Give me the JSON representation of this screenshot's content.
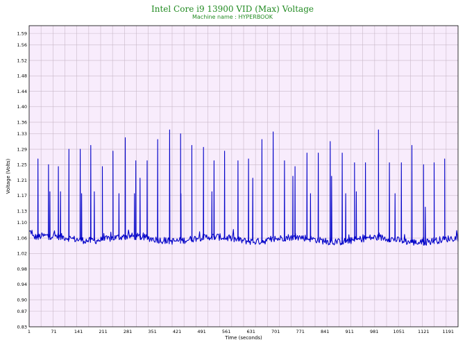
{
  "chart_data": {
    "type": "line",
    "title": "Intel Core i9 13900 VID (Max) Voltage",
    "subtitle": "Machine name : HYPERBOOK",
    "xlabel": "Time (seconds)",
    "ylabel": "Voltage (Volts)",
    "xlim": [
      1,
      1219
    ],
    "ylim": [
      0.83,
      1.61
    ],
    "x_ticks": [
      "1",
      "71",
      "141",
      "211",
      "281",
      "351",
      "421",
      "491",
      "561",
      "631",
      "701",
      "771",
      "841",
      "911",
      "981",
      "1051",
      "1121",
      "1191"
    ],
    "x_tick_values": [
      1,
      71,
      141,
      211,
      281,
      351,
      421,
      491,
      561,
      631,
      701,
      771,
      841,
      911,
      981,
      1051,
      1121,
      1191
    ],
    "y_ticks": [
      "0.83",
      "0.87",
      "0.90",
      "0.94",
      "0.98",
      "1.02",
      "1.06",
      "1.10",
      "1.13",
      "1.17",
      "1.21",
      "1.25",
      "1.29",
      "1.33",
      "1.36",
      "1.40",
      "1.44",
      "1.48",
      "1.52",
      "1.56",
      "1.59"
    ],
    "y_tick_values": [
      0.83,
      0.87,
      0.9,
      0.94,
      0.98,
      1.02,
      1.06,
      1.1,
      1.13,
      1.17,
      1.21,
      1.25,
      1.29,
      1.33,
      1.36,
      1.4,
      1.44,
      1.48,
      1.52,
      1.56,
      1.59
    ],
    "grid": true,
    "series_color": "#0000c8",
    "plot_background": "#f8ecfc",
    "grid_color": "#c8b8c8",
    "baseline": 1.06,
    "spikes": {
      "x": [
        26,
        56,
        84,
        114,
        146,
        176,
        209,
        239,
        274,
        304,
        336,
        366,
        400,
        431,
        463,
        496,
        526,
        556,
        594,
        624,
        662,
        694,
        726,
        756,
        790,
        822,
        856,
        890,
        925,
        956,
        993,
        1024,
        1058,
        1088,
        1121,
        1151,
        1181
      ],
      "y": [
        1.265,
        1.25,
        1.245,
        1.29,
        1.29,
        1.3,
        1.245,
        1.285,
        1.32,
        1.26,
        1.26,
        1.315,
        1.34,
        1.33,
        1.3,
        1.295,
        1.26,
        1.285,
        1.26,
        1.265,
        1.315,
        1.335,
        1.26,
        1.245,
        1.28,
        1.28,
        1.31,
        1.28,
        1.255,
        1.255,
        1.34,
        1.255,
        1.255,
        1.3,
        1.25,
        1.255,
        1.265
      ]
    },
    "secondary_spikes": {
      "x": [
        60,
        90,
        150,
        186,
        256,
        300,
        316,
        432,
        520,
        636,
        750,
        800,
        860,
        900,
        930,
        1040,
        1126
      ],
      "y": [
        1.18,
        1.18,
        1.175,
        1.18,
        1.175,
        1.175,
        1.215,
        1.175,
        1.18,
        1.215,
        1.22,
        1.175,
        1.22,
        1.175,
        1.18,
        1.175,
        1.14
      ]
    }
  }
}
